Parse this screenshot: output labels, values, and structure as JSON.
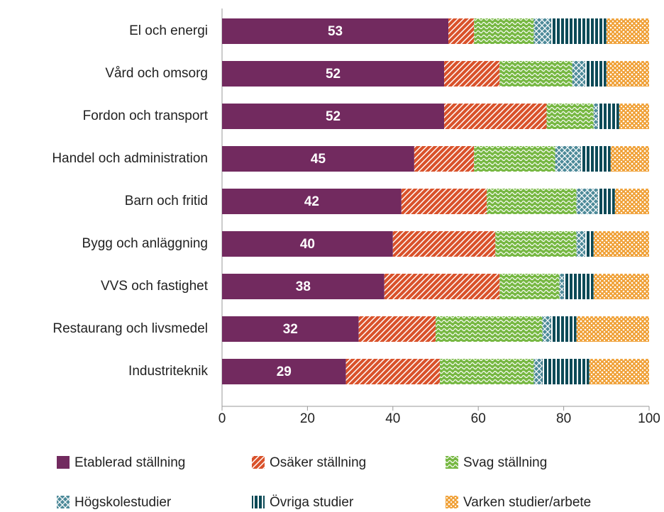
{
  "chart_data": {
    "type": "stacked-barh",
    "categories": [
      "El och energi",
      "Vård och omsorg",
      "Fordon och transport",
      "Handel och administration",
      "Barn och fritid",
      "Bygg och anläggning",
      "VVS och fastighet",
      "Restaurang och livsmedel",
      "Industriteknik"
    ],
    "series": [
      {
        "name": "Etablerad ställning",
        "color": "#722a5f",
        "values": [
          53,
          52,
          52,
          45,
          42,
          40,
          38,
          32,
          29
        ]
      },
      {
        "name": "Osäker ställning",
        "color": "#d9522b",
        "values": [
          6,
          13,
          24,
          14,
          20,
          24,
          27,
          18,
          22
        ]
      },
      {
        "name": "Svag ställning",
        "color": "#77b843",
        "values": [
          14,
          17,
          11,
          19,
          21,
          19,
          14,
          25,
          22
        ]
      },
      {
        "name": "Högskolestudier",
        "color": "#4d8a99",
        "values": [
          4,
          3,
          1,
          6,
          5,
          2,
          1,
          2,
          2
        ]
      },
      {
        "name": "Övriga studier",
        "color": "#0c4a57",
        "values": [
          13,
          5,
          5,
          7,
          4,
          2,
          7,
          6,
          11
        ]
      },
      {
        "name": "Varken studier/arbete",
        "color": "#f0a23a",
        "values": [
          10,
          10,
          7,
          9,
          8,
          13,
          13,
          17,
          14
        ]
      }
    ],
    "xlim": [
      0,
      100
    ],
    "xticks": [
      0,
      20,
      40,
      60,
      80,
      100
    ],
    "data_labels_series": 0
  }
}
